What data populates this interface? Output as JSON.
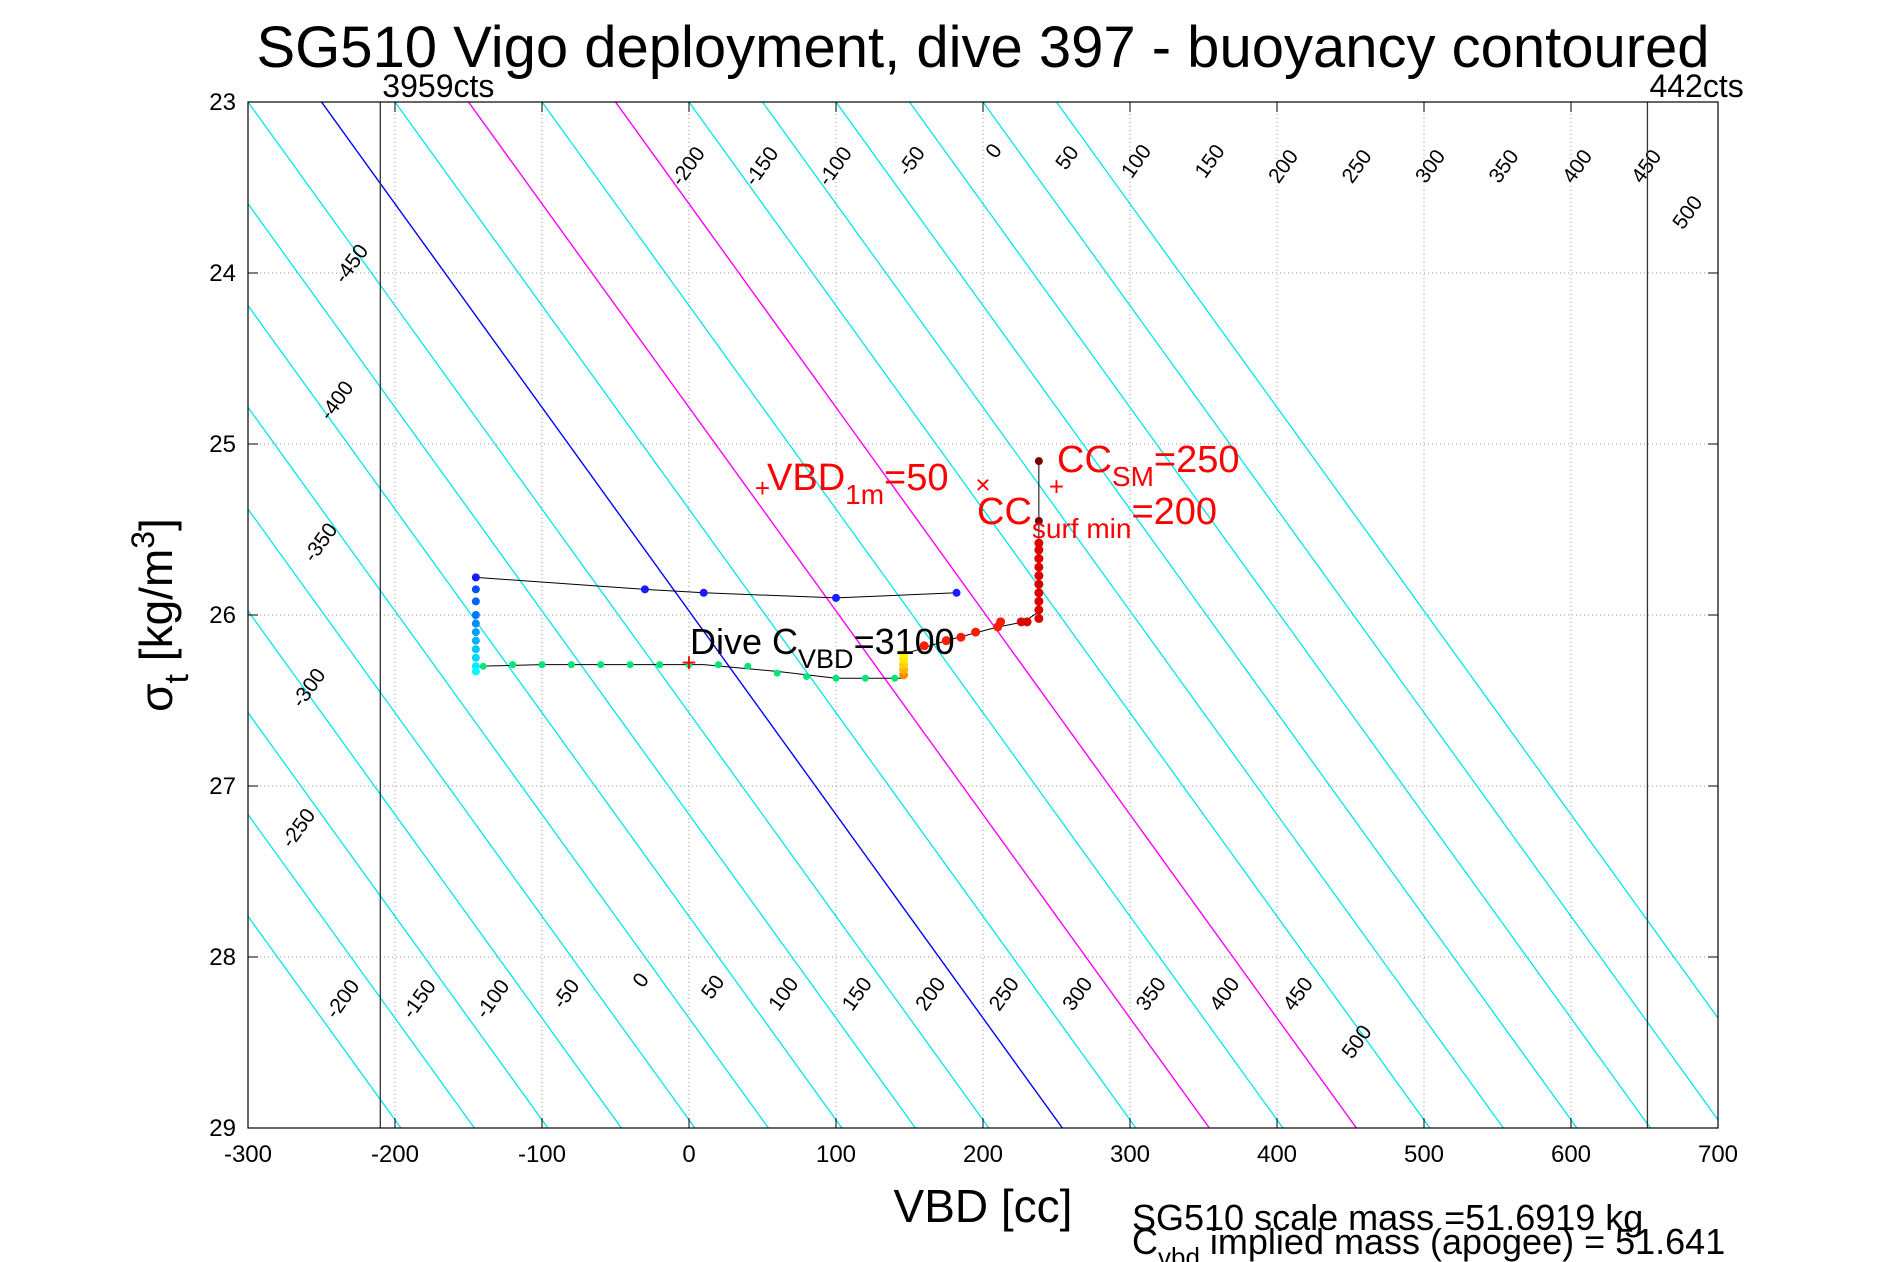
{
  "chart_data": {
    "type": "scatter",
    "title": "SG510 Vigo deployment, dive 397 - buoyancy contoured",
    "xlabel": "VBD [cc]",
    "ylabel": {
      "base": "σ",
      "sub": "t",
      "text": " [kg/m",
      "sup": "3",
      "close": "]"
    },
    "xlim": [
      -300,
      700
    ],
    "ylim": [
      23,
      29
    ],
    "y_reversed": true,
    "x_ticks": [
      -300,
      -200,
      -100,
      0,
      100,
      200,
      300,
      400,
      500,
      600,
      700
    ],
    "y_ticks": [
      23,
      24,
      25,
      26,
      27,
      28,
      29
    ],
    "grid": true,
    "footer": {
      "line1": "SG510 scale mass =51.6919 kg",
      "line2_base": "C",
      "line2_sub": "vbd",
      "line2_rest": " implied mass (apogee) = 51.641"
    },
    "vbd_limits": [
      {
        "x": -210,
        "label": "3959cts"
      },
      {
        "x": 652,
        "label": "442cts"
      }
    ],
    "contours": {
      "levels": [
        -450,
        -400,
        -350,
        -300,
        -250,
        -200,
        -150,
        -100,
        -50,
        0,
        50,
        100,
        150,
        200,
        250,
        300,
        350,
        400,
        450,
        500
      ],
      "vbd_at_top": [
        -700,
        -650,
        -600,
        -550,
        -500,
        -450,
        -400,
        -350,
        -300,
        -250,
        -200,
        -150,
        -100,
        -50,
        0,
        50,
        100,
        150,
        200,
        250
      ],
      "vbd_per_sigma": 84,
      "colors": {
        "default": "#00e5ee",
        "zero": "#0000ff",
        "highlight": "#ff00ff"
      },
      "highlight_levels": [
        100,
        200
      ],
      "top_labels": [
        {
          "text": "-450",
          "x": -229,
          "y": 23.95
        },
        {
          "text": "-400",
          "x": -239,
          "y": 24.75
        },
        {
          "text": "-350",
          "x": -250,
          "y": 25.58
        },
        {
          "text": "-300",
          "x": -258,
          "y": 26.43
        },
        {
          "text": "-250",
          "x": -265,
          "y": 27.25
        },
        {
          "text": "-200",
          "x": 0,
          "y": 23.38
        },
        {
          "text": "-150",
          "x": 50,
          "y": 23.38
        },
        {
          "text": "-100",
          "x": 100,
          "y": 23.38
        },
        {
          "text": "-50",
          "x": 152,
          "y": 23.35
        },
        {
          "text": "0",
          "x": 208,
          "y": 23.29
        },
        {
          "text": "50",
          "x": 258,
          "y": 23.33
        },
        {
          "text": "100",
          "x": 305,
          "y": 23.35
        },
        {
          "text": "150",
          "x": 355,
          "y": 23.35
        },
        {
          "text": "200",
          "x": 405,
          "y": 23.38
        },
        {
          "text": "250",
          "x": 455,
          "y": 23.38
        },
        {
          "text": "300",
          "x": 505,
          "y": 23.38
        },
        {
          "text": "350",
          "x": 555,
          "y": 23.38
        },
        {
          "text": "400",
          "x": 605,
          "y": 23.38
        },
        {
          "text": "450",
          "x": 652,
          "y": 23.38
        },
        {
          "text": "500",
          "x": 680,
          "y": 23.65
        }
      ],
      "bottom_labels": [
        {
          "text": "-200",
          "x": -235,
          "y": 28.25
        },
        {
          "text": "-150",
          "x": -183,
          "y": 28.25
        },
        {
          "text": "-100",
          "x": -133,
          "y": 28.25
        },
        {
          "text": "-50",
          "x": -83,
          "y": 28.22
        },
        {
          "text": "0",
          "x": -32,
          "y": 28.14
        },
        {
          "text": "50",
          "x": 17,
          "y": 28.18
        },
        {
          "text": "100",
          "x": 65,
          "y": 28.22
        },
        {
          "text": "150",
          "x": 115,
          "y": 28.22
        },
        {
          "text": "200",
          "x": 165,
          "y": 28.22
        },
        {
          "text": "250",
          "x": 215,
          "y": 28.22
        },
        {
          "text": "300",
          "x": 265,
          "y": 28.22
        },
        {
          "text": "350",
          "x": 315,
          "y": 28.22
        },
        {
          "text": "400",
          "x": 365,
          "y": 28.22
        },
        {
          "text": "450",
          "x": 415,
          "y": 28.22
        },
        {
          "text": "500",
          "x": 455,
          "y": 28.5
        }
      ]
    },
    "dive_trace": {
      "descent_color": "#00e676",
      "line": [
        [
          -145,
          25.78
        ],
        [
          -30,
          25.85
        ],
        [
          10,
          25.87
        ],
        [
          100,
          25.9
        ],
        [
          182,
          25.87
        ]
      ],
      "top_points": [
        [
          -145,
          25.78
        ],
        [
          -30,
          25.85
        ],
        [
          10,
          25.87
        ],
        [
          100,
          25.9
        ],
        [
          182,
          25.87
        ]
      ],
      "left_column": [
        [
          -145,
          25.85
        ],
        [
          -145,
          25.92
        ],
        [
          -145,
          26.0
        ],
        [
          -145,
          26.05
        ],
        [
          -145,
          26.1
        ],
        [
          -145,
          26.15
        ],
        [
          -145,
          26.2
        ],
        [
          -145,
          26.25
        ],
        [
          -145,
          26.3
        ],
        [
          -145,
          26.33
        ]
      ],
      "bottom_line": [
        [
          -145,
          26.3
        ],
        [
          -100,
          26.29
        ],
        [
          -40,
          26.29
        ],
        [
          10,
          26.29
        ],
        [
          60,
          26.33
        ],
        [
          100,
          26.37
        ],
        [
          146,
          26.37
        ]
      ],
      "bottom_points": [
        [
          -140,
          26.3
        ],
        [
          -120,
          26.29
        ],
        [
          -100,
          26.29
        ],
        [
          -80,
          26.29
        ],
        [
          -60,
          26.29
        ],
        [
          -40,
          26.29
        ],
        [
          -20,
          26.29
        ],
        [
          0,
          26.29
        ],
        [
          20,
          26.29
        ],
        [
          40,
          26.3
        ],
        [
          60,
          26.34
        ],
        [
          80,
          26.36
        ],
        [
          100,
          26.37
        ],
        [
          120,
          26.37
        ],
        [
          140,
          26.37
        ]
      ],
      "right_column": [
        [
          146,
          26.35
        ],
        [
          146,
          26.32
        ],
        [
          146,
          26.29
        ],
        [
          146,
          26.26
        ],
        [
          146,
          26.23
        ]
      ],
      "upper_path": [
        [
          146,
          26.23
        ],
        [
          175,
          26.15
        ],
        [
          210,
          26.07
        ],
        [
          228,
          26.04
        ],
        [
          238,
          25.98
        ],
        [
          238,
          25.7
        ],
        [
          238,
          25.45
        ],
        [
          238,
          25.1
        ]
      ],
      "red_points": [
        [
          160,
          26.18
        ],
        [
          175,
          26.15
        ],
        [
          185,
          26.13
        ],
        [
          195,
          26.1
        ],
        [
          210,
          26.07
        ],
        [
          212,
          26.04
        ],
        [
          226,
          26.04
        ],
        [
          230,
          26.04
        ],
        [
          238,
          26.02
        ],
        [
          238,
          25.97
        ],
        [
          238,
          25.92
        ],
        [
          238,
          25.87
        ],
        [
          238,
          25.82
        ],
        [
          238,
          25.77
        ],
        [
          238,
          25.72
        ],
        [
          238,
          25.67
        ],
        [
          238,
          25.62
        ],
        [
          238,
          25.58
        ]
      ],
      "dark_points": [
        [
          238,
          25.1
        ],
        [
          238,
          25.45
        ]
      ]
    },
    "markers": [
      {
        "x": 50,
        "y": 25.27,
        "symbol": "+",
        "color": "#ff0000"
      },
      {
        "x": 200,
        "y": 25.25,
        "symbol": "×",
        "color": "#ff0000"
      },
      {
        "x": 250,
        "y": 25.26,
        "symbol": "+",
        "color": "#ff0000"
      },
      {
        "x": 0,
        "y": 26.29,
        "symbol": "+",
        "color": "#ff0000"
      }
    ],
    "annotations": {
      "vbd1m": {
        "base": "VBD",
        "sub": "1m",
        "rest": "=50",
        "color": "#ff0000"
      },
      "ccsm": {
        "base": "CC",
        "sub": "SM",
        "rest": "=250",
        "color": "#ff0000"
      },
      "ccsurf": {
        "base": "CC",
        "sub": "surf min",
        "rest": "=200",
        "color": "#ff0000"
      },
      "divecvbd": {
        "base": "Dive C",
        "sub": "VBD",
        "rest": "=3100",
        "color": "#000000"
      }
    }
  }
}
